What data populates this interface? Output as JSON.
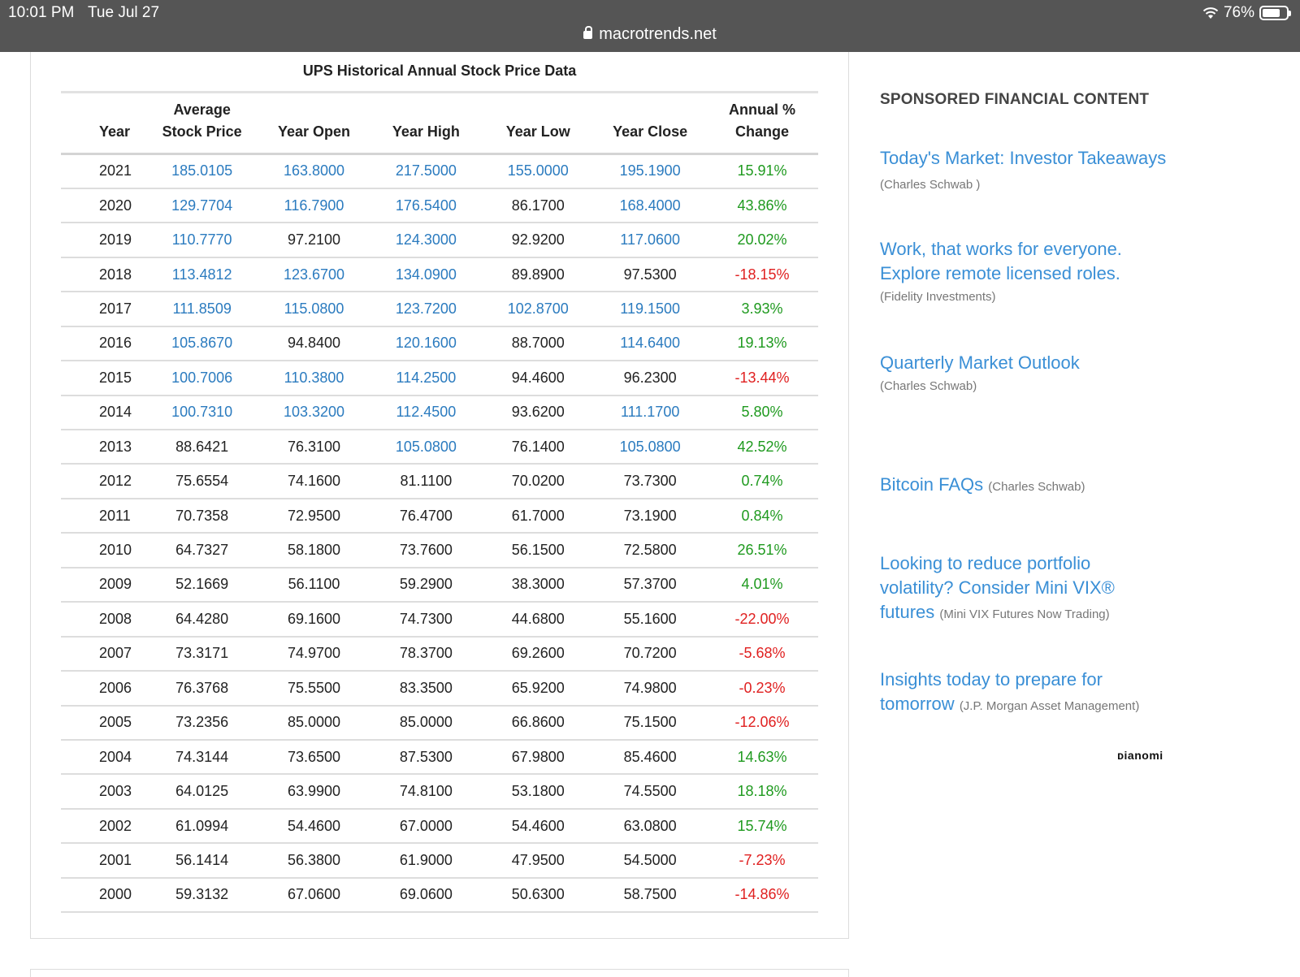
{
  "status_bar": {
    "time": "10:01 PM",
    "date": "Tue Jul 27",
    "battery": "76%",
    "battery_level": 0.76
  },
  "browser": {
    "url": "macrotrends.net"
  },
  "table": {
    "title": "UPS Historical Annual Stock Price Data",
    "headers": {
      "year": "Year",
      "avg_line1": "Average",
      "avg_line2": "Stock Price",
      "open": "Year Open",
      "high": "Year High",
      "low": "Year Low",
      "close": "Year Close",
      "change_line1": "Annual %",
      "change_line2": "Change"
    },
    "rows": [
      {
        "year": "2021",
        "avg": "185.0105",
        "open": "163.8000",
        "high": "217.5000",
        "low": "155.0000",
        "close": "195.1900",
        "change": "15.91%"
      },
      {
        "year": "2020",
        "avg": "129.7704",
        "open": "116.7900",
        "high": "176.5400",
        "low": "86.1700",
        "close": "168.4000",
        "change": "43.86%"
      },
      {
        "year": "2019",
        "avg": "110.7770",
        "open": "97.2100",
        "high": "124.3000",
        "low": "92.9200",
        "close": "117.0600",
        "change": "20.02%"
      },
      {
        "year": "2018",
        "avg": "113.4812",
        "open": "123.6700",
        "high": "134.0900",
        "low": "89.8900",
        "close": "97.5300",
        "change": "-18.15%"
      },
      {
        "year": "2017",
        "avg": "111.8509",
        "open": "115.0800",
        "high": "123.7200",
        "low": "102.8700",
        "close": "119.1500",
        "change": "3.93%"
      },
      {
        "year": "2016",
        "avg": "105.8670",
        "open": "94.8400",
        "high": "120.1600",
        "low": "88.7000",
        "close": "114.6400",
        "change": "19.13%"
      },
      {
        "year": "2015",
        "avg": "100.7006",
        "open": "110.3800",
        "high": "114.2500",
        "low": "94.4600",
        "close": "96.2300",
        "change": "-13.44%"
      },
      {
        "year": "2014",
        "avg": "100.7310",
        "open": "103.3200",
        "high": "112.4500",
        "low": "93.6200",
        "close": "111.1700",
        "change": "5.80%"
      },
      {
        "year": "2013",
        "avg": "88.6421",
        "open": "76.3100",
        "high": "105.0800",
        "low": "76.1400",
        "close": "105.0800",
        "change": "42.52%"
      },
      {
        "year": "2012",
        "avg": "75.6554",
        "open": "74.1600",
        "high": "81.1100",
        "low": "70.0200",
        "close": "73.7300",
        "change": "0.74%"
      },
      {
        "year": "2011",
        "avg": "70.7358",
        "open": "72.9500",
        "high": "76.4700",
        "low": "61.7000",
        "close": "73.1900",
        "change": "0.84%"
      },
      {
        "year": "2010",
        "avg": "64.7327",
        "open": "58.1800",
        "high": "73.7600",
        "low": "56.1500",
        "close": "72.5800",
        "change": "26.51%"
      },
      {
        "year": "2009",
        "avg": "52.1669",
        "open": "56.1100",
        "high": "59.2900",
        "low": "38.3000",
        "close": "57.3700",
        "change": "4.01%"
      },
      {
        "year": "2008",
        "avg": "64.4280",
        "open": "69.1600",
        "high": "74.7300",
        "low": "44.6800",
        "close": "55.1600",
        "change": "-22.00%"
      },
      {
        "year": "2007",
        "avg": "73.3171",
        "open": "74.9700",
        "high": "78.3700",
        "low": "69.2600",
        "close": "70.7200",
        "change": "-5.68%"
      },
      {
        "year": "2006",
        "avg": "76.3768",
        "open": "75.5500",
        "high": "83.3500",
        "low": "65.9200",
        "close": "74.9800",
        "change": "-0.23%"
      },
      {
        "year": "2005",
        "avg": "73.2356",
        "open": "85.0000",
        "high": "85.0000",
        "low": "66.8600",
        "close": "75.1500",
        "change": "-12.06%"
      },
      {
        "year": "2004",
        "avg": "74.3144",
        "open": "73.6500",
        "high": "87.5300",
        "low": "67.9800",
        "close": "85.4600",
        "change": "14.63%"
      },
      {
        "year": "2003",
        "avg": "64.0125",
        "open": "63.9900",
        "high": "74.8100",
        "low": "53.1800",
        "close": "74.5500",
        "change": "18.18%"
      },
      {
        "year": "2002",
        "avg": "61.0994",
        "open": "54.4600",
        "high": "67.0000",
        "low": "54.4600",
        "close": "63.0800",
        "change": "15.74%"
      },
      {
        "year": "2001",
        "avg": "56.1414",
        "open": "56.3800",
        "high": "61.9000",
        "low": "47.9500",
        "close": "54.5000",
        "change": "-7.23%"
      },
      {
        "year": "2000",
        "avg": "59.3132",
        "open": "67.0600",
        "high": "69.0600",
        "low": "50.6300",
        "close": "58.7500",
        "change": "-14.86%"
      }
    ]
  },
  "sidebar": {
    "heading": "SPONSORED FINANCIAL CONTENT",
    "items": [
      {
        "title": "Today's Market: Investor Takeaways",
        "source": "(Charles Schwab )"
      },
      {
        "title": "Work, that works for everyone. Explore remote licensed roles.",
        "source": "(Fidelity Investments)"
      },
      {
        "title": "Quarterly Market Outlook",
        "source": "(Charles Schwab)"
      },
      {
        "title": "Bitcoin FAQs",
        "source": "(Charles Schwab)"
      },
      {
        "title": "Looking to reduce portfolio volatility? Consider Mini VIX® futures",
        "source": "(Mini VIX Futures Now Trading)"
      },
      {
        "title": "Insights today to prepare for tomorrow",
        "source": "(J.P. Morgan Asset Management)"
      }
    ],
    "brand": "Dianomi"
  },
  "colors": {
    "link": "#2b7bbf",
    "positive": "#1f9a1f",
    "negative": "#e02020",
    "top_bar": "#555555"
  }
}
